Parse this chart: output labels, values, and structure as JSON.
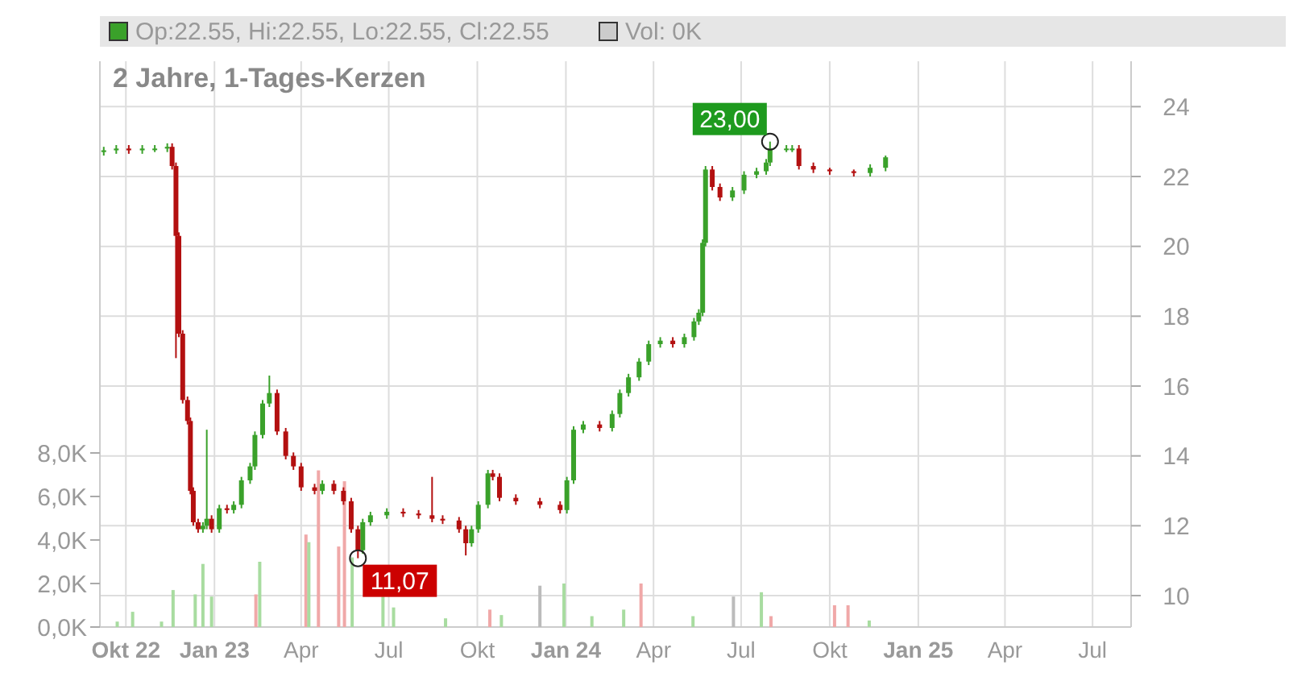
{
  "chart_data": {
    "type": "candlestick",
    "title": "2 Jahre, 1-Tages-Kerzen",
    "annotations": [
      "Op:22.55, Hi:22.55, Lo:22.55, Cl:22.55",
      "Vol: 0K",
      {
        "text": "23,00",
        "x": "2024-07-31",
        "y": 23
      },
      {
        "text": "11,07",
        "x": "2023-05-30",
        "y": 11.07
      }
    ],
    "xlim": [
      "2022-09-04",
      "2025-08-10"
    ],
    "xticks": [
      {
        "value": "2022-10-01",
        "label": "Okt 22"
      },
      {
        "value": "2023-01-01",
        "label": "Jan 23"
      },
      {
        "value": "2023-04-01",
        "label": "Apr"
      },
      {
        "value": "2023-07-01",
        "label": "Jul"
      },
      {
        "value": "2023-10-01",
        "label": "Okt"
      },
      {
        "value": "2024-01-01",
        "label": "Jan 24"
      },
      {
        "value": "2024-04-01",
        "label": "Apr"
      },
      {
        "value": "2024-07-01",
        "label": "Jul"
      },
      {
        "value": "2024-10-01",
        "label": "Okt"
      },
      {
        "value": "2025-01-01",
        "label": "Jan 25"
      },
      {
        "value": "2025-04-01",
        "label": "Apr"
      },
      {
        "value": "2025-07-01",
        "label": "Jul"
      }
    ],
    "ylim": [
      9.1,
      25.3
    ],
    "yticks": [
      10,
      12,
      14,
      16,
      18,
      20,
      22,
      24
    ],
    "y2lim": [
      0,
      26000
    ],
    "y2ticks": [
      {
        "value": 0,
        "label": "0,0K"
      },
      {
        "value": 2000,
        "label": "2,0K"
      },
      {
        "value": 4000,
        "label": "4,0K"
      },
      {
        "value": 6000,
        "label": "6,0K"
      },
      {
        "value": 8000,
        "label": "8,0K"
      }
    ],
    "grid": true,
    "series": [
      {
        "color": "#3aa12a",
        "x": [
          "2022-09-08",
          "2022-09-21",
          "2022-10-18",
          "2022-10-31",
          "2022-11-13",
          "2022-12-20",
          "2022-12-24",
          "2023-01-06",
          "2023-01-21",
          "2023-01-29",
          "2023-02-07",
          "2023-02-12",
          "2023-02-20",
          "2023-02-27",
          "2023-04-23",
          "2023-06-04",
          "2023-06-12",
          "2023-06-29",
          "2023-09-25",
          "2023-10-02",
          "2023-10-12",
          "2024-01-02",
          "2024-01-09",
          "2024-01-19",
          "2024-02-18",
          "2024-02-26",
          "2024-03-06",
          "2024-03-17",
          "2024-03-27",
          "2024-04-08",
          "2024-05-03",
          "2024-05-13",
          "2024-05-18",
          "2024-05-22",
          "2024-05-25",
          "2024-06-22",
          "2024-07-04",
          "2024-07-17",
          "2024-07-27",
          "2024-07-31",
          "2024-08-17",
          "2024-08-23",
          "2024-11-12",
          "2024-11-28"
        ],
        "ohlc": [
          [
            22.7,
            22.85,
            22.6,
            22.75
          ],
          [
            22.75,
            22.9,
            22.65,
            22.8
          ],
          [
            22.75,
            22.9,
            22.65,
            22.8
          ],
          [
            22.8,
            22.9,
            22.7,
            22.8
          ],
          [
            22.8,
            22.95,
            22.7,
            22.85
          ],
          [
            11.9,
            12.1,
            11.8,
            12
          ],
          [
            12,
            14.75,
            11.9,
            12.2
          ],
          [
            11.9,
            12.6,
            11.8,
            12.5
          ],
          [
            12.45,
            12.7,
            12.35,
            12.6
          ],
          [
            12.6,
            13.4,
            12.5,
            13.3
          ],
          [
            13.3,
            13.8,
            13.2,
            13.7
          ],
          [
            13.7,
            14.7,
            13.6,
            14.6
          ],
          [
            14.6,
            15.6,
            14.5,
            15.5
          ],
          [
            15.5,
            16.3,
            15.4,
            15.8
          ],
          [
            13,
            13.3,
            12.9,
            13.2
          ],
          [
            11.3,
            12.2,
            11.2,
            12.1
          ],
          [
            12.1,
            12.4,
            12,
            12.3
          ],
          [
            12.3,
            12.5,
            12.2,
            12.4
          ],
          [
            11.5,
            12,
            11.4,
            11.9
          ],
          [
            11.9,
            12.7,
            11.8,
            12.6
          ],
          [
            12.6,
            13.6,
            12.5,
            13.5
          ],
          [
            12.45,
            13.4,
            12.35,
            13.3
          ],
          [
            13.3,
            14.85,
            13.2,
            14.75
          ],
          [
            14.75,
            15,
            14.65,
            14.9
          ],
          [
            14.8,
            15.3,
            14.7,
            15.2
          ],
          [
            15.2,
            15.9,
            15.1,
            15.8
          ],
          [
            15.8,
            16.35,
            15.7,
            16.25
          ],
          [
            16.25,
            16.8,
            16.15,
            16.7
          ],
          [
            16.7,
            17.3,
            16.6,
            17.2
          ],
          [
            17.2,
            17.4,
            17.1,
            17.3
          ],
          [
            17.2,
            17.5,
            17.1,
            17.4
          ],
          [
            17.4,
            17.95,
            17.3,
            17.85
          ],
          [
            17.85,
            18.2,
            17.75,
            18.1
          ],
          [
            18.1,
            20.2,
            18,
            20.1
          ],
          [
            20.1,
            22.3,
            20,
            22.2
          ],
          [
            21.4,
            21.7,
            21.3,
            21.6
          ],
          [
            21.6,
            22.15,
            21.5,
            22.05
          ],
          [
            22.05,
            22.25,
            21.95,
            22.15
          ],
          [
            22.15,
            22.5,
            22.05,
            22.4
          ],
          [
            22.4,
            23,
            22.3,
            22.8
          ],
          [
            22.8,
            22.9,
            22.7,
            22.8
          ],
          [
            22.8,
            22.9,
            22.7,
            22.8
          ],
          [
            22.1,
            22.35,
            22,
            22.25
          ],
          [
            22.25,
            22.6,
            22.15,
            22.55
          ]
        ]
      },
      {
        "color": "#b31010",
        "x": [
          "2022-10-04",
          "2022-11-18",
          "2022-11-22",
          "2022-11-25",
          "2022-11-29",
          "2022-12-04",
          "2022-12-07",
          "2022-12-10",
          "2022-12-15",
          "2022-12-29",
          "2023-01-14",
          "2023-03-07",
          "2023-03-16",
          "2023-03-24",
          "2023-04-01",
          "2023-04-15",
          "2023-05-05",
          "2023-05-15",
          "2023-05-23",
          "2023-05-30",
          "2023-07-16",
          "2023-08-01",
          "2023-08-15",
          "2023-08-26",
          "2023-09-12",
          "2023-09-19",
          "2023-10-17",
          "2023-10-24",
          "2023-11-10",
          "2023-12-05",
          "2023-12-26",
          "2024-02-05",
          "2024-04-21",
          "2024-06-01",
          "2024-06-09",
          "2024-08-30",
          "2024-09-14",
          "2024-10-01",
          "2024-10-26"
        ],
        "ohlc": [
          [
            22.8,
            22.9,
            22.65,
            22.75
          ],
          [
            22.85,
            22.95,
            22.2,
            22.3
          ],
          [
            22.3,
            22.4,
            16.8,
            20.3
          ],
          [
            20.3,
            20.4,
            17.4,
            17.5
          ],
          [
            17.5,
            17.6,
            15.5,
            15.6
          ],
          [
            15.6,
            15.7,
            14.9,
            15
          ],
          [
            15,
            15.1,
            12.9,
            13
          ],
          [
            13,
            13.1,
            12,
            12.1
          ],
          [
            12.1,
            12.2,
            11.8,
            11.9
          ],
          [
            12.2,
            12.3,
            11.8,
            11.9
          ],
          [
            12.5,
            12.6,
            12.35,
            12.45
          ],
          [
            15.8,
            15.9,
            14.6,
            14.7
          ],
          [
            14.7,
            14.8,
            13.9,
            14
          ],
          [
            14,
            14.1,
            13.6,
            13.7
          ],
          [
            13.7,
            13.8,
            13,
            13.1
          ],
          [
            13.1,
            13.2,
            12.9,
            13
          ],
          [
            13.2,
            13.3,
            12.9,
            13
          ],
          [
            13,
            13.1,
            12.6,
            12.7
          ],
          [
            12.7,
            12.8,
            11.8,
            11.9
          ],
          [
            11.9,
            12,
            11.07,
            11.3
          ],
          [
            12.4,
            12.5,
            12.25,
            12.35
          ],
          [
            12.35,
            12.45,
            12.2,
            12.3
          ],
          [
            12.3,
            13.4,
            12.1,
            12.2
          ],
          [
            12.2,
            12.3,
            12.05,
            12.15
          ],
          [
            12.15,
            12.25,
            11.8,
            11.9
          ],
          [
            11.9,
            12,
            11.15,
            11.5
          ],
          [
            13.5,
            13.6,
            13.3,
            13.4
          ],
          [
            13.4,
            13.5,
            12.7,
            12.8
          ],
          [
            12.8,
            12.9,
            12.6,
            12.7
          ],
          [
            12.7,
            12.8,
            12.5,
            12.6
          ],
          [
            12.6,
            12.7,
            12.35,
            12.45
          ],
          [
            14.9,
            15,
            14.7,
            14.8
          ],
          [
            17.3,
            17.4,
            17.1,
            17.2
          ],
          [
            22.2,
            22.3,
            21.6,
            21.7
          ],
          [
            21.7,
            21.8,
            21.3,
            21.4
          ],
          [
            22.8,
            22.9,
            22.2,
            22.3
          ],
          [
            22.3,
            22.4,
            22.1,
            22.2
          ],
          [
            22.2,
            22.25,
            22.05,
            22.15
          ],
          [
            22.15,
            22.2,
            22,
            22.1
          ]
        ]
      },
      {
        "type": "bar",
        "axis": "y2",
        "x": [
          "2022-09-22",
          "2022-10-08",
          "2022-11-07",
          "2022-11-19",
          "2022-12-12",
          "2022-12-20",
          "2022-12-29",
          "2023-02-13",
          "2023-02-17",
          "2023-04-06",
          "2023-04-09",
          "2023-04-19",
          "2023-05-10",
          "2023-05-16",
          "2023-05-24",
          "2023-06-25",
          "2023-07-06",
          "2023-08-29",
          "2023-10-14",
          "2023-10-26",
          "2023-12-05",
          "2023-12-30",
          "2024-01-28",
          "2024-03-01",
          "2024-03-19",
          "2024-05-12",
          "2024-06-23",
          "2024-07-22",
          "2024-08-01",
          "2024-10-06",
          "2024-10-20",
          "2024-11-11"
        ],
        "values": [
          250,
          700,
          250,
          1700,
          1500,
          2900,
          1400,
          1500,
          3000,
          4250,
          3900,
          7200,
          3700,
          6700,
          3200,
          1400,
          900,
          400,
          800,
          550,
          1900,
          2000,
          500,
          800,
          2000,
          500,
          1400,
          1600,
          500,
          1000,
          1000,
          300
        ],
        "colors": [
          "#a8dca0",
          "#a8dca0",
          "#a8dca0",
          "#a8dca0",
          "#a8dca0",
          "#a8dca0",
          "#a8dca0",
          "#f0a8a8",
          "#a8dca0",
          "#f0a8a8",
          "#a8dca0",
          "#f0a8a8",
          "#f0a8a8",
          "#f0a8a8",
          "#a8dca0",
          "#a8dca0",
          "#a8dca0",
          "#a8dca0",
          "#f0a8a8",
          "#a8dca0",
          "#bbbbbb",
          "#a8dca0",
          "#a8dca0",
          "#a8dca0",
          "#f0a8a8",
          "#a8dca0",
          "#bbbbbb",
          "#a8dca0",
          "#f0a8a8",
          "#f0a8a8",
          "#f0a8a8",
          "#a8dca0"
        ]
      }
    ]
  }
}
